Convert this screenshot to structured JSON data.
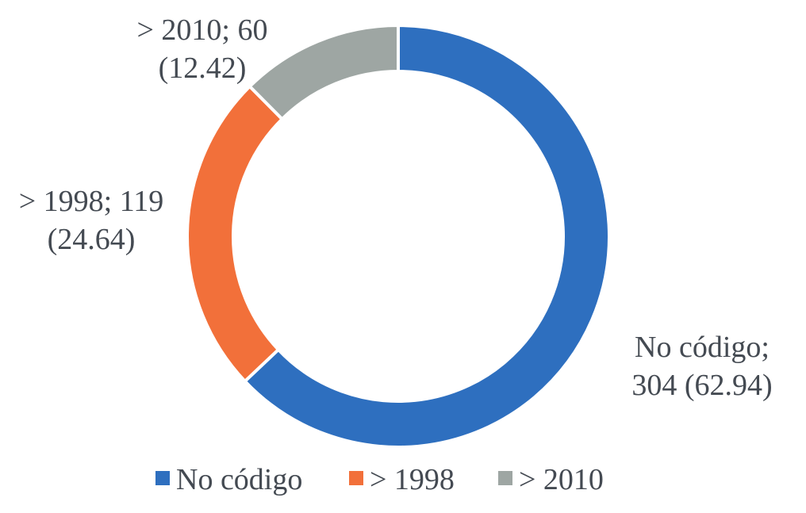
{
  "chart_data": {
    "type": "pie",
    "donut": true,
    "legend_position": "bottom",
    "slices": [
      {
        "label": "No código",
        "value": 304,
        "percent": 62.94,
        "color": "#2e6fbf",
        "label_line1": "No código;",
        "label_line2": "304 (62.94)"
      },
      {
        "label": "> 1998",
        "value": 119,
        "percent": 24.64,
        "color": "#f2703a",
        "label_line1": "> 1998; 119",
        "label_line2": "(24.64)"
      },
      {
        "label": "> 2010",
        "value": 60,
        "percent": 12.42,
        "color": "#9ea6a3",
        "label_line1": "> 2010; 60",
        "label_line2": "(12.42)"
      }
    ],
    "legend": [
      {
        "label": "No código",
        "color": "#2e6fbf"
      },
      {
        "label": "> 1998",
        "color": "#f2703a"
      },
      {
        "label": "> 2010",
        "color": "#9ea6a3"
      }
    ]
  }
}
